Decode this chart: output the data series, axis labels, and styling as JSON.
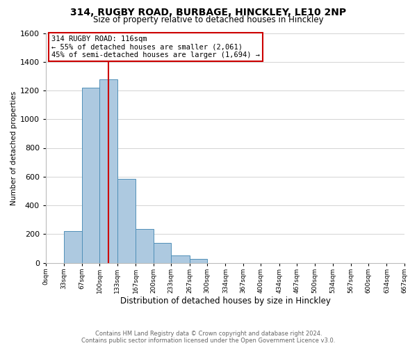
{
  "title": "314, RUGBY ROAD, BURBAGE, HINCKLEY, LE10 2NP",
  "subtitle": "Size of property relative to detached houses in Hinckley",
  "xlabel": "Distribution of detached houses by size in Hinckley",
  "ylabel": "Number of detached properties",
  "footer_line1": "Contains HM Land Registry data © Crown copyright and database right 2024.",
  "footer_line2": "Contains public sector information licensed under the Open Government Licence v3.0.",
  "annotation_title": "314 RUGBY ROAD: 116sqm",
  "annotation_line1": "← 55% of detached houses are smaller (2,061)",
  "annotation_line2": "45% of semi-detached houses are larger (1,694) →",
  "bar_edges": [
    0,
    33,
    67,
    100,
    133,
    167,
    200,
    233,
    267,
    300,
    334,
    367,
    400,
    434,
    467,
    500,
    534,
    567,
    600,
    634,
    667
  ],
  "bar_heights": [
    0,
    220,
    1220,
    1280,
    585,
    235,
    140,
    50,
    25,
    0,
    0,
    0,
    0,
    0,
    0,
    0,
    0,
    0,
    0,
    0
  ],
  "property_value": 116,
  "bar_color": "#adc9e0",
  "bar_edge_color": "#5090b8",
  "vline_color": "#cc0000",
  "annotation_box_edge_color": "#cc0000",
  "background_color": "#ffffff",
  "grid_color": "#cccccc",
  "ylim": [
    0,
    1600
  ],
  "yticks": [
    0,
    200,
    400,
    600,
    800,
    1000,
    1200,
    1400,
    1600
  ],
  "xtick_labels": [
    "0sqm",
    "33sqm",
    "67sqm",
    "100sqm",
    "133sqm",
    "167sqm",
    "200sqm",
    "233sqm",
    "267sqm",
    "300sqm",
    "334sqm",
    "367sqm",
    "400sqm",
    "434sqm",
    "467sqm",
    "500sqm",
    "534sqm",
    "567sqm",
    "600sqm",
    "634sqm",
    "667sqm"
  ],
  "title_fontsize": 10,
  "subtitle_fontsize": 8.5,
  "ylabel_fontsize": 7.5,
  "xlabel_fontsize": 8.5,
  "ytick_fontsize": 8,
  "xtick_fontsize": 6.5,
  "annotation_fontsize": 7.5,
  "footer_fontsize": 6
}
